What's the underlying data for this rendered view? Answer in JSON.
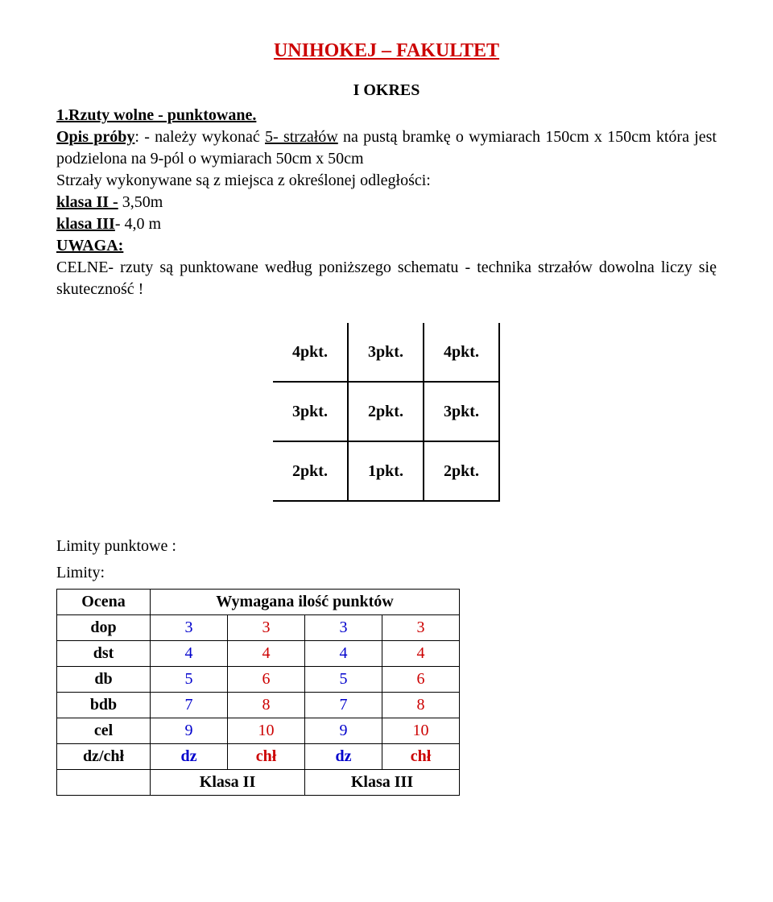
{
  "title": "UNIHOKEJ – FAKULTET",
  "subtitle": "I OKRES",
  "heading1_prefix": "1.",
  "heading1_text": "Rzuty wolne - punktowane.",
  "opis_label": "Opis próby",
  "opis_text": ": - należy wykonać ",
  "opis_shot_count": "5- strzałów",
  "opis_rest": " na pustą bramkę o wymiarach     150cm x 150cm która jest podzielona na 9-pól o wymiarach 50cm x 50cm",
  "strzaly_line": "Strzały wykonywane są z miejsca z  określonej odległości:",
  "klasa2_label": "klasa II -",
  "klasa2_val": " 3,50m",
  "klasa3_label": "klasa III",
  "klasa3_val": "- 4,0 m",
  "uwaga_label": "UWAGA:",
  "celne_text": "CELNE- rzuty są punktowane według poniższego schematu - technika strzałów dowolna liczy się skuteczność !",
  "grid": [
    [
      "4pkt.",
      "3pkt.",
      "4pkt."
    ],
    [
      "3pkt.",
      "2pkt.",
      "3pkt."
    ],
    [
      "2pkt.",
      "1pkt.",
      "2pkt."
    ]
  ],
  "limits_title1": "Limity punktowe :",
  "limits_title2": "Limity:",
  "table": {
    "ocena_header": "Ocena",
    "wym_header": "Wymagana ilość punktów",
    "rows": [
      {
        "label": "dop",
        "vals": [
          "3",
          "3",
          "3",
          "3"
        ]
      },
      {
        "label": "dst",
        "vals": [
          "4",
          "4",
          "4",
          "4"
        ]
      },
      {
        "label": "db",
        "vals": [
          "5",
          "6",
          "5",
          "6"
        ]
      },
      {
        "label": "bdb",
        "vals": [
          "7",
          "8",
          "7",
          "8"
        ]
      },
      {
        "label": "cel",
        "vals": [
          "9",
          "10",
          "9",
          "10"
        ]
      }
    ],
    "dzrow": {
      "label": "dz/chł",
      "vals": [
        "dz",
        "chł",
        "dz",
        "chł"
      ]
    },
    "klasa_row": [
      "Klasa II",
      "Klasa III"
    ]
  },
  "colors": {
    "title": "#cc0000",
    "blue": "#0000cc",
    "red": "#cc0000"
  }
}
